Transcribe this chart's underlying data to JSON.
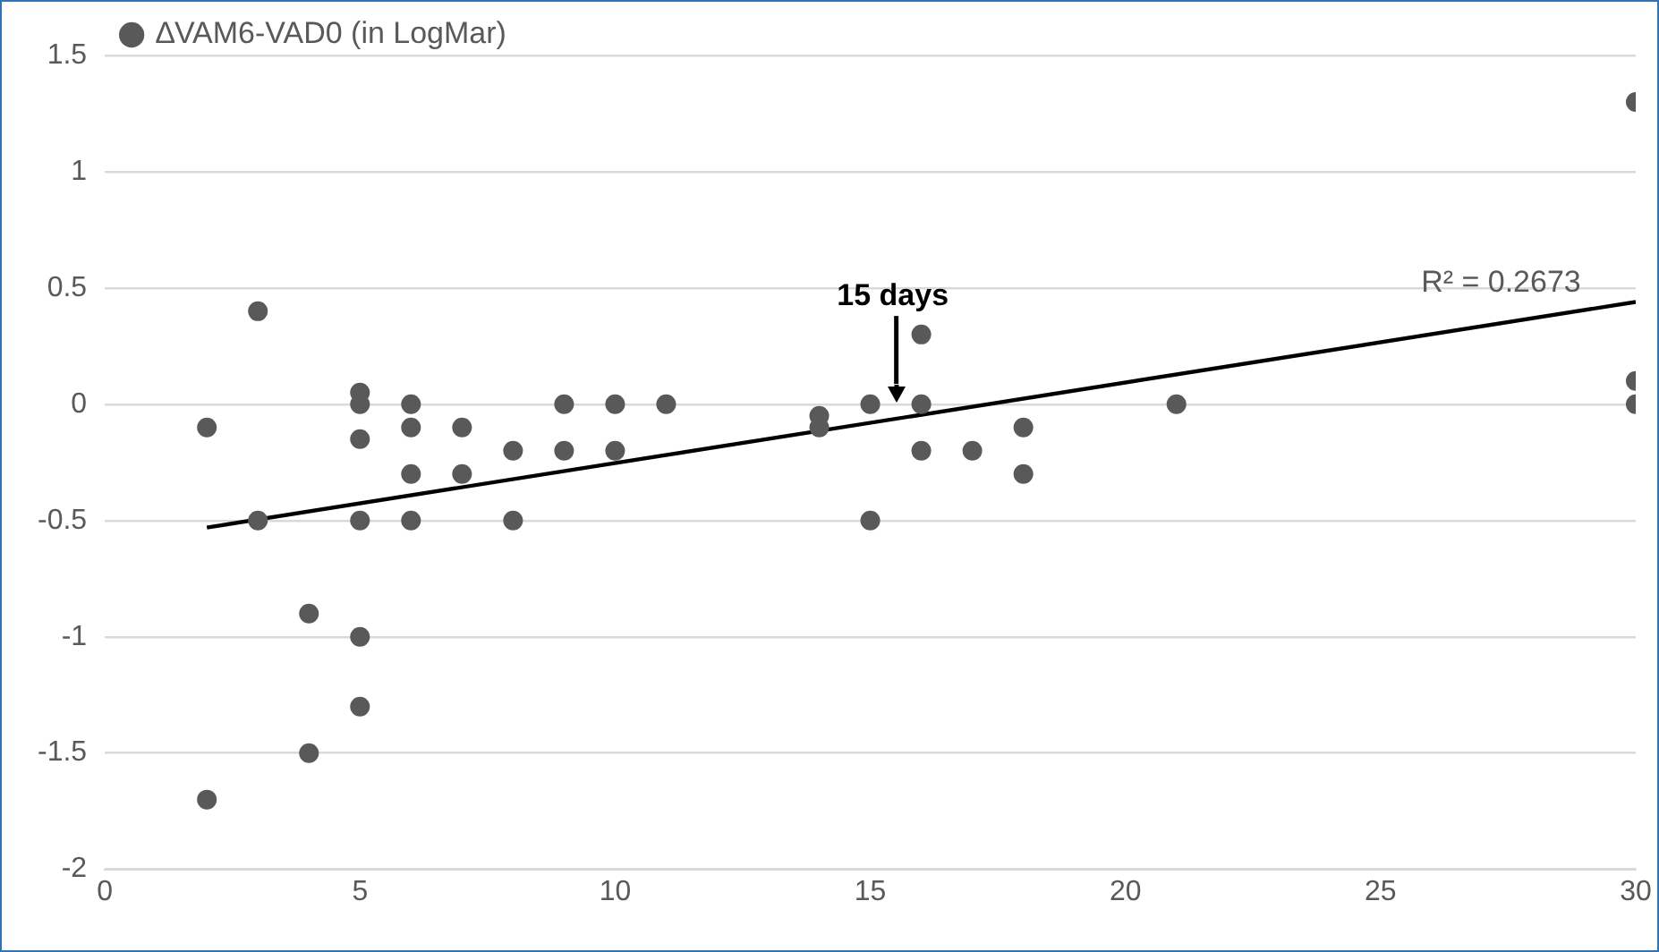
{
  "chart_data": {
    "type": "scatter",
    "series": [
      {
        "name": "∆VAM6-VAD0 (in LogMar)",
        "color": "#595959",
        "x": [
          2,
          2,
          3,
          3,
          4,
          4,
          5,
          5,
          5,
          5,
          5,
          5,
          6,
          6,
          6,
          6,
          7,
          7,
          8,
          8,
          9,
          9,
          10,
          10,
          11,
          14,
          14,
          15,
          15,
          16,
          16,
          16,
          17,
          18,
          18,
          21,
          30,
          30,
          30
        ],
        "values": [
          -0.1,
          -1.7,
          0.4,
          -0.5,
          -0.9,
          -1.5,
          0.05,
          0,
          -0.15,
          -0.5,
          -1,
          -1.3,
          0,
          -0.1,
          -0.3,
          -0.5,
          -0.1,
          -0.3,
          -0.2,
          -0.5,
          0,
          -0.2,
          0,
          -0.2,
          0,
          -0.05,
          -0.1,
          0,
          -0.5,
          0.3,
          0,
          -0.2,
          -0.2,
          -0.1,
          -0.3,
          0,
          1.3,
          0.1,
          0
        ]
      },
      {
        "type": "line",
        "color": "#000000",
        "x": [
          2,
          30
        ],
        "values": [
          -0.53,
          0.44
        ],
        "marker": "none"
      }
    ],
    "annotations": [
      "15 days",
      "R² = 0.2673"
    ],
    "xlim": [
      0,
      30
    ],
    "xticks": [
      0,
      5,
      10,
      15,
      20,
      25,
      30
    ],
    "ylim": [
      -2,
      1.5
    ],
    "yticks": [
      -2,
      -1.5,
      -1,
      -0.5,
      0,
      0.5,
      1,
      1.5
    ],
    "grid": "y",
    "legend": "top left",
    "marker": "circle"
  }
}
